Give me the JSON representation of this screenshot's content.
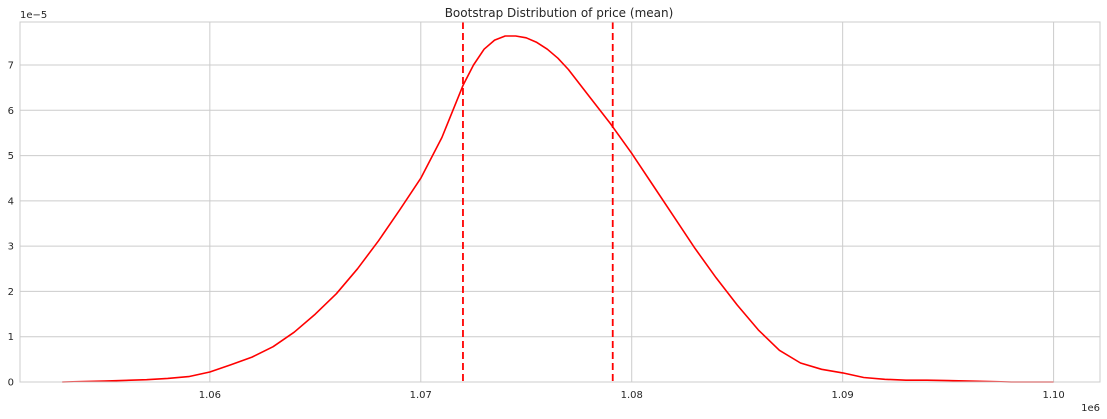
{
  "chart_data": {
    "type": "line",
    "title": "Bootstrap Distribution of price (mean)",
    "xlabel": "",
    "ylabel": "",
    "x_offset_label": "1e6",
    "y_offset_label": "1e−5",
    "x_scale": 1000000,
    "y_scale": 1e-05,
    "xlim": [
      1.051,
      1.1022
    ],
    "ylim": [
      0,
      7.95
    ],
    "xticks": [
      1.06,
      1.07,
      1.08,
      1.09,
      1.1
    ],
    "xtick_labels": [
      "1.06",
      "1.07",
      "1.08",
      "1.09",
      "1.10"
    ],
    "yticks": [
      0,
      1,
      2,
      3,
      4,
      5,
      6,
      7
    ],
    "ytick_labels": [
      "0",
      "1",
      "2",
      "3",
      "4",
      "5",
      "6",
      "7"
    ],
    "grid": true,
    "series": [
      {
        "color": "#ff0000",
        "x": [
          1.053,
          1.055,
          1.057,
          1.058,
          1.059,
          1.06,
          1.061,
          1.062,
          1.063,
          1.064,
          1.065,
          1.066,
          1.067,
          1.068,
          1.069,
          1.07,
          1.071,
          1.072,
          1.0725,
          1.073,
          1.0735,
          1.074,
          1.0745,
          1.075,
          1.0755,
          1.076,
          1.0765,
          1.077,
          1.078,
          1.079,
          1.08,
          1.081,
          1.082,
          1.083,
          1.084,
          1.085,
          1.086,
          1.087,
          1.088,
          1.089,
          1.09,
          1.091,
          1.092,
          1.093,
          1.094,
          1.095,
          1.096,
          1.097,
          1.098,
          1.099,
          1.1
        ],
        "values": [
          0.0,
          0.02,
          0.05,
          0.08,
          0.12,
          0.22,
          0.38,
          0.55,
          0.78,
          1.1,
          1.5,
          1.95,
          2.5,
          3.12,
          3.8,
          4.5,
          5.4,
          6.55,
          7.0,
          7.35,
          7.55,
          7.64,
          7.64,
          7.6,
          7.5,
          7.35,
          7.15,
          6.9,
          6.3,
          5.7,
          5.05,
          4.35,
          3.65,
          2.95,
          2.3,
          1.7,
          1.15,
          0.7,
          0.42,
          0.28,
          0.2,
          0.1,
          0.06,
          0.04,
          0.04,
          0.03,
          0.02,
          0.01,
          0.0,
          0.0,
          0.0
        ]
      }
    ],
    "vlines": [
      {
        "x": 1.072,
        "color": "#ff0000",
        "style": "dashed"
      },
      {
        "x": 1.0791,
        "color": "#ff0000",
        "style": "dashed"
      }
    ]
  }
}
